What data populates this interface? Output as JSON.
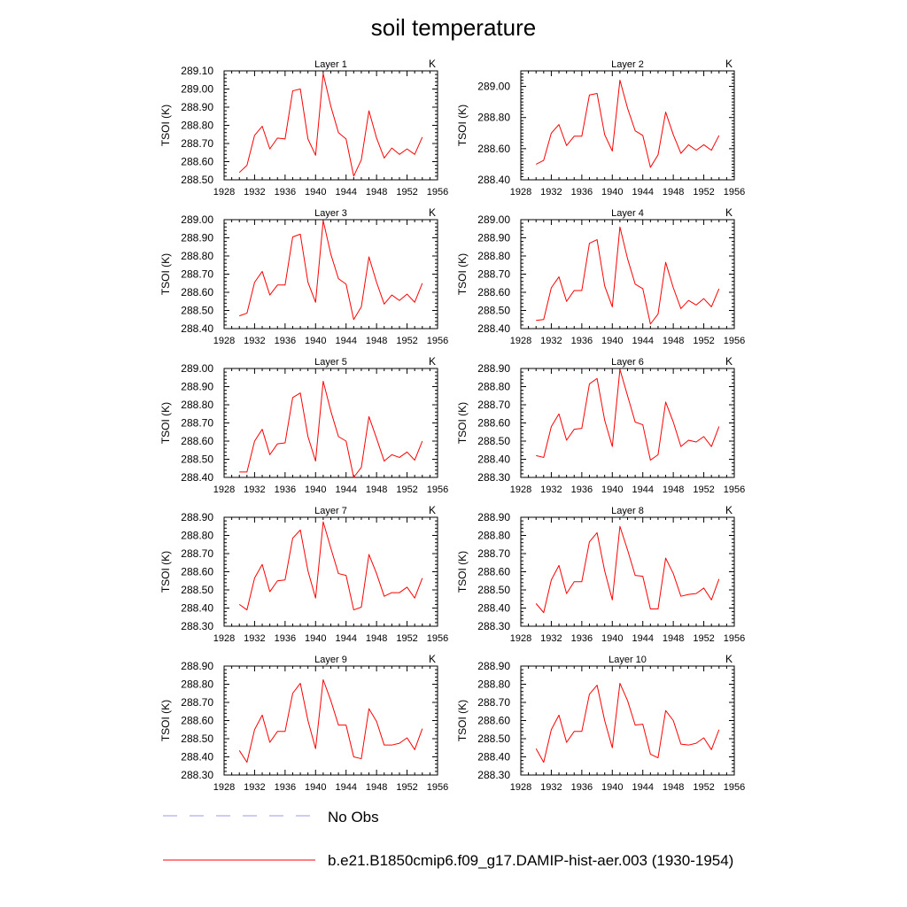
{
  "title": "soil temperature",
  "legend": [
    {
      "label": "No Obs",
      "color": "#9999ee",
      "dashed": true
    },
    {
      "label": "b.e21.B1850cmip6.f09_g17.DAMIP-hist-aer.003 (1930-1954)",
      "color": "#ff0000",
      "dashed": false
    }
  ],
  "chart_data": [
    {
      "type": "line",
      "title": "Layer 1",
      "units": "K",
      "ylabel": "TSOI  (K)",
      "xlim": [
        1928,
        1956
      ],
      "ylim": [
        288.5,
        289.1
      ],
      "xticks": [
        "1928",
        "1932",
        "1936",
        "1940",
        "1944",
        "1948",
        "1952",
        "1956"
      ],
      "yticks": [
        "288.50",
        "288.60",
        "288.70",
        "288.80",
        "288.90",
        "289.00",
        "289.10"
      ],
      "series": [
        {
          "name": "b.e21.B1850cmip6.f09_g17.DAMIP-hist-aer.003 (1930-1954)",
          "color": "#ff0000",
          "x": [
            1930,
            1931,
            1932,
            1933,
            1934,
            1935,
            1936,
            1937,
            1938,
            1939,
            1940,
            1941,
            1942,
            1943,
            1944,
            1945,
            1946,
            1947,
            1948,
            1949,
            1950,
            1951,
            1952,
            1953,
            1954
          ],
          "values": [
            288.54,
            288.58,
            288.745,
            288.795,
            288.67,
            288.73,
            288.725,
            288.99,
            289.0,
            288.725,
            288.635,
            289.085,
            288.905,
            288.76,
            288.725,
            288.52,
            288.61,
            288.88,
            288.73,
            288.62,
            288.675,
            288.64,
            288.67,
            288.64,
            288.735
          ]
        }
      ]
    },
    {
      "type": "line",
      "title": "Layer 2",
      "units": "K",
      "ylabel": "TSOI  (K)",
      "xlim": [
        1928,
        1956
      ],
      "ylim": [
        288.4,
        289.1
      ],
      "xticks": [
        "1928",
        "1932",
        "1936",
        "1940",
        "1944",
        "1948",
        "1952",
        "1956"
      ],
      "yticks": [
        "288.40",
        "288.60",
        "288.80",
        "289.00"
      ],
      "series": [
        {
          "name": "b.e21.B1850cmip6.f09_g17.DAMIP-hist-aer.003 (1930-1954)",
          "color": "#ff0000",
          "x": [
            1930,
            1931,
            1932,
            1933,
            1934,
            1935,
            1936,
            1937,
            1938,
            1939,
            1940,
            1941,
            1942,
            1943,
            1944,
            1945,
            1946,
            1947,
            1948,
            1949,
            1950,
            1951,
            1952,
            1953,
            1954
          ],
          "values": [
            288.5,
            288.525,
            288.7,
            288.755,
            288.62,
            288.68,
            288.68,
            288.945,
            288.955,
            288.69,
            288.585,
            289.04,
            288.86,
            288.715,
            288.685,
            288.48,
            288.56,
            288.835,
            288.69,
            288.57,
            288.625,
            288.59,
            288.625,
            288.59,
            288.685
          ]
        }
      ]
    },
    {
      "type": "line",
      "title": "Layer 3",
      "units": "K",
      "ylabel": "TSOI  (K)",
      "xlim": [
        1928,
        1956
      ],
      "ylim": [
        288.4,
        289.0
      ],
      "xticks": [
        "1928",
        "1932",
        "1936",
        "1940",
        "1944",
        "1948",
        "1952",
        "1956"
      ],
      "yticks": [
        "288.40",
        "288.50",
        "288.60",
        "288.70",
        "288.80",
        "288.90",
        "289.00"
      ],
      "series": [
        {
          "name": "b.e21.B1850cmip6.f09_g17.DAMIP-hist-aer.003 (1930-1954)",
          "color": "#ff0000",
          "x": [
            1930,
            1931,
            1932,
            1933,
            1934,
            1935,
            1936,
            1937,
            1938,
            1939,
            1940,
            1941,
            1942,
            1943,
            1944,
            1945,
            1946,
            1947,
            1948,
            1949,
            1950,
            1951,
            1952,
            1953,
            1954
          ],
          "values": [
            288.47,
            288.485,
            288.655,
            288.715,
            288.585,
            288.64,
            288.64,
            288.905,
            288.92,
            288.655,
            288.545,
            288.995,
            288.81,
            288.675,
            288.645,
            288.45,
            288.52,
            288.795,
            288.655,
            288.535,
            288.585,
            288.555,
            288.59,
            288.545,
            288.65
          ]
        }
      ]
    },
    {
      "type": "line",
      "title": "Layer 4",
      "units": "K",
      "ylabel": "TSOI  (K)",
      "xlim": [
        1928,
        1956
      ],
      "ylim": [
        288.4,
        289.0
      ],
      "xticks": [
        "1928",
        "1932",
        "1936",
        "1940",
        "1944",
        "1948",
        "1952",
        "1956"
      ],
      "yticks": [
        "288.40",
        "288.50",
        "288.60",
        "288.70",
        "288.80",
        "288.90",
        "289.00"
      ],
      "series": [
        {
          "name": "b.e21.B1850cmip6.f09_g17.DAMIP-hist-aer.003 (1930-1954)",
          "color": "#ff0000",
          "x": [
            1930,
            1931,
            1932,
            1933,
            1934,
            1935,
            1936,
            1937,
            1938,
            1939,
            1940,
            1941,
            1942,
            1943,
            1944,
            1945,
            1946,
            1947,
            1948,
            1949,
            1950,
            1951,
            1952,
            1953,
            1954
          ],
          "values": [
            288.445,
            288.45,
            288.625,
            288.685,
            288.55,
            288.61,
            288.61,
            288.87,
            288.89,
            288.635,
            288.52,
            288.96,
            288.785,
            288.645,
            288.62,
            288.425,
            288.48,
            288.765,
            288.625,
            288.51,
            288.555,
            288.53,
            288.565,
            288.52,
            288.62
          ]
        }
      ]
    },
    {
      "type": "line",
      "title": "Layer 5",
      "units": "K",
      "ylabel": "TSOI  (K)",
      "xlim": [
        1928,
        1956
      ],
      "ylim": [
        288.4,
        289.0
      ],
      "xticks": [
        "1928",
        "1932",
        "1936",
        "1940",
        "1944",
        "1948",
        "1952",
        "1956"
      ],
      "yticks": [
        "288.40",
        "288.50",
        "288.60",
        "288.70",
        "288.80",
        "288.90",
        "289.00"
      ],
      "series": [
        {
          "name": "b.e21.B1850cmip6.f09_g17.DAMIP-hist-aer.003 (1930-1954)",
          "color": "#ff0000",
          "x": [
            1930,
            1931,
            1932,
            1933,
            1934,
            1935,
            1936,
            1937,
            1938,
            1939,
            1940,
            1941,
            1942,
            1943,
            1944,
            1945,
            1946,
            1947,
            1948,
            1949,
            1950,
            1951,
            1952,
            1953,
            1954
          ],
          "values": [
            288.43,
            288.43,
            288.6,
            288.665,
            288.525,
            288.585,
            288.59,
            288.84,
            288.865,
            288.625,
            288.49,
            288.93,
            288.765,
            288.625,
            288.6,
            288.4,
            288.455,
            288.735,
            288.615,
            288.49,
            288.525,
            288.51,
            288.54,
            288.495,
            288.6
          ]
        }
      ]
    },
    {
      "type": "line",
      "title": "Layer 6",
      "units": "K",
      "ylabel": "TSOI  (K)",
      "xlim": [
        1928,
        1956
      ],
      "ylim": [
        288.3,
        288.9
      ],
      "xticks": [
        "1928",
        "1932",
        "1936",
        "1940",
        "1944",
        "1948",
        "1952",
        "1956"
      ],
      "yticks": [
        "288.30",
        "288.40",
        "288.50",
        "288.60",
        "288.70",
        "288.80",
        "288.90"
      ],
      "series": [
        {
          "name": "b.e21.B1850cmip6.f09_g17.DAMIP-hist-aer.003 (1930-1954)",
          "color": "#ff0000",
          "x": [
            1930,
            1931,
            1932,
            1933,
            1934,
            1935,
            1936,
            1937,
            1938,
            1939,
            1940,
            1941,
            1942,
            1943,
            1944,
            1945,
            1946,
            1947,
            1948,
            1949,
            1950,
            1951,
            1952,
            1953,
            1954
          ],
          "values": [
            288.42,
            288.41,
            288.58,
            288.65,
            288.505,
            288.565,
            288.57,
            288.815,
            288.845,
            288.615,
            288.47,
            288.895,
            288.75,
            288.605,
            288.59,
            288.395,
            288.425,
            288.715,
            288.605,
            288.47,
            288.505,
            288.495,
            288.525,
            288.47,
            288.58
          ]
        }
      ]
    },
    {
      "type": "line",
      "title": "Layer 7",
      "units": "K",
      "ylabel": "TSOI  (K)",
      "xlim": [
        1928,
        1956
      ],
      "ylim": [
        288.3,
        288.9
      ],
      "xticks": [
        "1928",
        "1932",
        "1936",
        "1940",
        "1944",
        "1948",
        "1952",
        "1956"
      ],
      "yticks": [
        "288.30",
        "288.40",
        "288.50",
        "288.60",
        "288.70",
        "288.80",
        "288.90"
      ],
      "series": [
        {
          "name": "b.e21.B1850cmip6.f09_g17.DAMIP-hist-aer.003 (1930-1954)",
          "color": "#ff0000",
          "x": [
            1930,
            1931,
            1932,
            1933,
            1934,
            1935,
            1936,
            1937,
            1938,
            1939,
            1940,
            1941,
            1942,
            1943,
            1944,
            1945,
            1946,
            1947,
            1948,
            1949,
            1950,
            1951,
            1952,
            1953,
            1954
          ],
          "values": [
            288.42,
            288.39,
            288.565,
            288.64,
            288.49,
            288.55,
            288.555,
            288.785,
            288.83,
            288.605,
            288.455,
            288.875,
            288.73,
            288.59,
            288.58,
            288.39,
            288.405,
            288.695,
            288.59,
            288.465,
            288.485,
            288.485,
            288.515,
            288.455,
            288.565
          ]
        }
      ]
    },
    {
      "type": "line",
      "title": "Layer 8",
      "units": "K",
      "ylabel": "TSOI  (K)",
      "xlim": [
        1928,
        1956
      ],
      "ylim": [
        288.3,
        288.9
      ],
      "xticks": [
        "1928",
        "1932",
        "1936",
        "1940",
        "1944",
        "1948",
        "1952",
        "1956"
      ],
      "yticks": [
        "288.30",
        "288.40",
        "288.50",
        "288.60",
        "288.70",
        "288.80",
        "288.90"
      ],
      "series": [
        {
          "name": "b.e21.B1850cmip6.f09_g17.DAMIP-hist-aer.003 (1930-1954)",
          "color": "#ff0000",
          "x": [
            1930,
            1931,
            1932,
            1933,
            1934,
            1935,
            1936,
            1937,
            1938,
            1939,
            1940,
            1941,
            1942,
            1943,
            1944,
            1945,
            1946,
            1947,
            1948,
            1949,
            1950,
            1951,
            1952,
            1953,
            1954
          ],
          "values": [
            288.425,
            288.375,
            288.555,
            288.635,
            288.48,
            288.545,
            288.545,
            288.765,
            288.815,
            288.605,
            288.445,
            288.85,
            288.72,
            288.58,
            288.575,
            288.395,
            288.395,
            288.675,
            288.59,
            288.465,
            288.475,
            288.48,
            288.51,
            288.445,
            288.56
          ]
        }
      ]
    },
    {
      "type": "line",
      "title": "Layer 9",
      "units": "K",
      "ylabel": "TSOI  (K)",
      "xlim": [
        1928,
        1956
      ],
      "ylim": [
        288.3,
        288.9
      ],
      "xticks": [
        "1928",
        "1932",
        "1936",
        "1940",
        "1944",
        "1948",
        "1952",
        "1956"
      ],
      "yticks": [
        "288.30",
        "288.40",
        "288.50",
        "288.60",
        "288.70",
        "288.80",
        "288.90"
      ],
      "series": [
        {
          "name": "b.e21.B1850cmip6.f09_g17.DAMIP-hist-aer.003 (1930-1954)",
          "color": "#ff0000",
          "x": [
            1930,
            1931,
            1932,
            1933,
            1934,
            1935,
            1936,
            1937,
            1938,
            1939,
            1940,
            1941,
            1942,
            1943,
            1944,
            1945,
            1946,
            1947,
            1948,
            1949,
            1950,
            1951,
            1952,
            1953,
            1954
          ],
          "values": [
            288.435,
            288.37,
            288.55,
            288.63,
            288.48,
            288.54,
            288.54,
            288.75,
            288.805,
            288.6,
            288.445,
            288.825,
            288.71,
            288.575,
            288.575,
            288.4,
            288.39,
            288.665,
            288.595,
            288.465,
            288.465,
            288.475,
            288.505,
            288.44,
            288.555
          ]
        }
      ]
    },
    {
      "type": "line",
      "title": "Layer 10",
      "units": "K",
      "ylabel": "TSOI  (K)",
      "xlim": [
        1928,
        1956
      ],
      "ylim": [
        288.3,
        288.9
      ],
      "xticks": [
        "1928",
        "1932",
        "1936",
        "1940",
        "1944",
        "1948",
        "1952",
        "1956"
      ],
      "yticks": [
        "288.30",
        "288.40",
        "288.50",
        "288.60",
        "288.70",
        "288.80",
        "288.90"
      ],
      "series": [
        {
          "name": "b.e21.B1850cmip6.f09_g17.DAMIP-hist-aer.003 (1930-1954)",
          "color": "#ff0000",
          "x": [
            1930,
            1931,
            1932,
            1933,
            1934,
            1935,
            1936,
            1937,
            1938,
            1939,
            1940,
            1941,
            1942,
            1943,
            1944,
            1945,
            1946,
            1947,
            1948,
            1949,
            1950,
            1951,
            1952,
            1953,
            1954
          ],
          "values": [
            288.445,
            288.37,
            288.55,
            288.63,
            288.48,
            288.54,
            288.54,
            288.745,
            288.795,
            288.6,
            288.45,
            288.805,
            288.71,
            288.575,
            288.58,
            288.415,
            288.395,
            288.655,
            288.6,
            288.47,
            288.465,
            288.475,
            288.505,
            288.44,
            288.55
          ]
        }
      ]
    }
  ]
}
